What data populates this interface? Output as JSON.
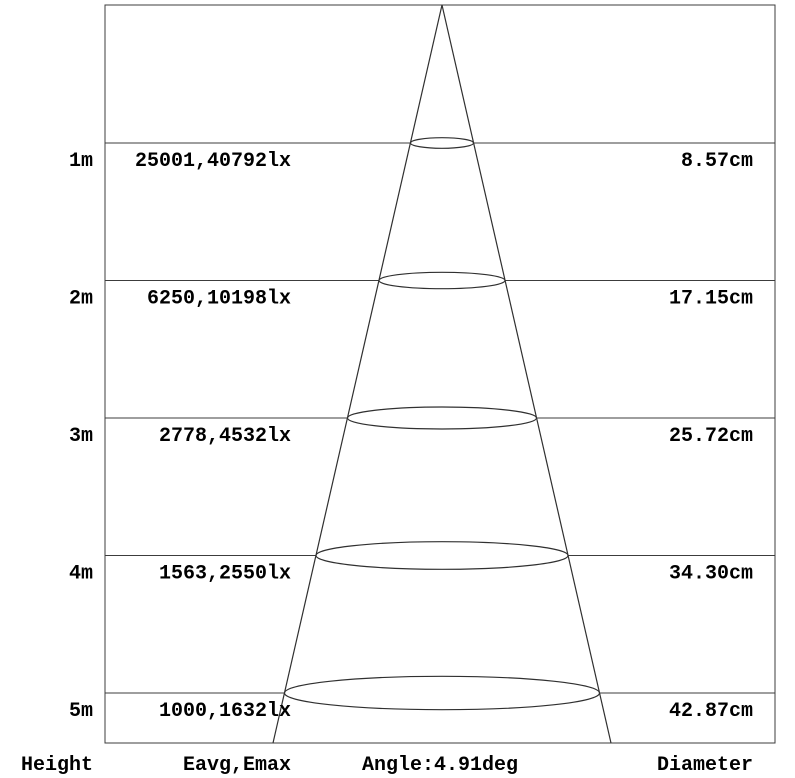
{
  "page": {
    "background": "#ffffff",
    "line_color": "#3c3c3c",
    "text_color": "#000000"
  },
  "footer": {
    "height_label": "Height",
    "eavg_emax_label": "Eavg,Emax",
    "angle_label": "Angle:4.91deg",
    "diameter_label": "Diameter"
  },
  "chart_data": {
    "type": "table",
    "beam_angle_deg": 4.91,
    "columns": [
      "Height",
      "Eavg,Emax",
      "Angle:4.91deg",
      "Diameter"
    ],
    "heights_m": [
      1,
      2,
      3,
      4,
      5
    ],
    "eavg_lx": [
      25001,
      6250,
      2778,
      1563,
      1000
    ],
    "emax_lx": [
      40792,
      10198,
      4532,
      2550,
      1632
    ],
    "diameter_cm": [
      8.57,
      17.15,
      25.72,
      34.3,
      42.87
    ],
    "rows": [
      {
        "height": "1m",
        "eavg_emax": "25001,40792lx",
        "diameter": "8.57cm",
        "height_m": 1,
        "eavg_lx": 25001,
        "emax_lx": 40792,
        "diameter_cm": 8.57
      },
      {
        "height": "2m",
        "eavg_emax": "6250,10198lx",
        "diameter": "17.15cm",
        "height_m": 2,
        "eavg_lx": 6250,
        "emax_lx": 10198,
        "diameter_cm": 17.15
      },
      {
        "height": "3m",
        "eavg_emax": "2778,4532lx",
        "diameter": "25.72cm",
        "height_m": 3,
        "eavg_lx": 2778,
        "emax_lx": 4532,
        "diameter_cm": 25.72
      },
      {
        "height": "4m",
        "eavg_emax": "1563,2550lx",
        "diameter": "34.30cm",
        "height_m": 4,
        "eavg_lx": 1563,
        "emax_lx": 2550,
        "diameter_cm": 34.3
      },
      {
        "height": "5m",
        "eavg_emax": "1000,1632lx",
        "diameter": "42.87cm",
        "height_m": 5,
        "eavg_lx": 1000,
        "emax_lx": 1632,
        "diameter_cm": 42.87
      }
    ]
  }
}
